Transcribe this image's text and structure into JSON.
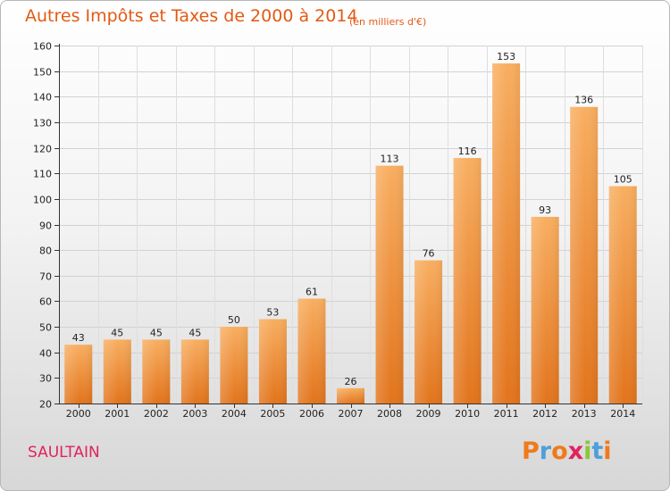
{
  "header": {
    "title": "Autres Impôts et Taxes de 2000 à 2014",
    "unit": "(en milliers d'€)"
  },
  "footer": {
    "commune": "SAULTAIN",
    "logo_text": "Proxiti",
    "logo_colors": [
      "#f07a1a",
      "#4f9fd9",
      "#f07a1a",
      "#e0245e",
      "#8cc63f",
      "#4f9fd9",
      "#f07a1a"
    ]
  },
  "colors": {
    "bar_light": "#f8ae60",
    "bar_dark": "#e2741c",
    "title": "#e25a14",
    "commune": "#e0245e"
  },
  "chart_data": {
    "type": "bar",
    "categories": [
      "2000",
      "2001",
      "2002",
      "2003",
      "2004",
      "2005",
      "2006",
      "2007",
      "2008",
      "2009",
      "2010",
      "2011",
      "2012",
      "2013",
      "2014"
    ],
    "values": [
      43,
      45,
      45,
      45,
      50,
      53,
      61,
      26,
      113,
      76,
      116,
      153,
      93,
      136,
      105
    ],
    "title": "Autres Impôts et Taxes de 2000 à 2014",
    "xlabel": "",
    "ylabel": "",
    "ylim": [
      20,
      160
    ],
    "yticks": [
      20,
      30,
      40,
      50,
      60,
      70,
      80,
      90,
      100,
      110,
      120,
      130,
      140,
      150,
      160
    ],
    "grid": true,
    "data_labels": true
  }
}
